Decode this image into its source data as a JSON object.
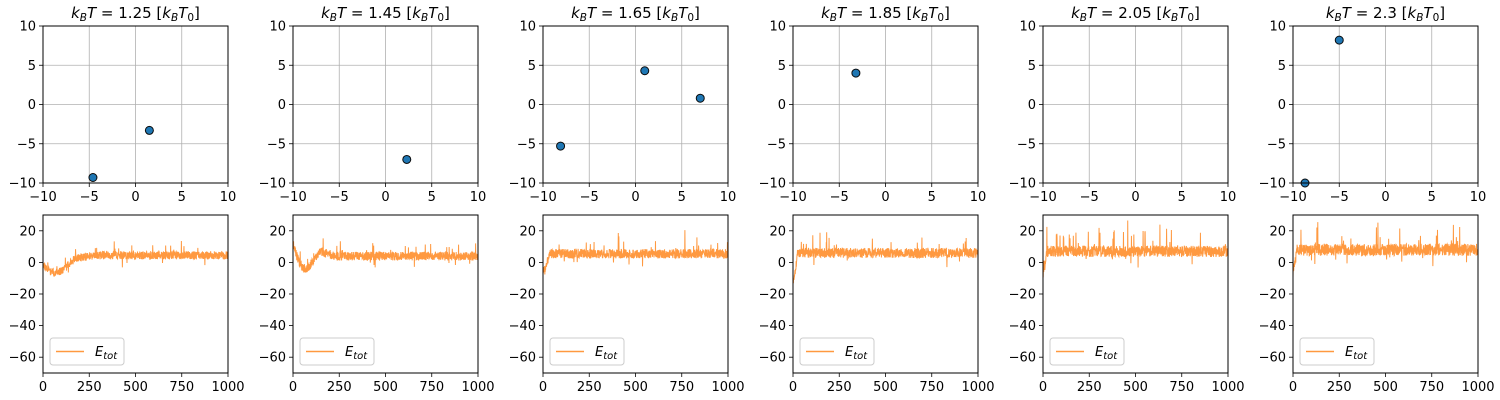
{
  "colors": {
    "point_fill": "#1f77b4",
    "point_edge": "#0a0a0a",
    "energy_line": "#ff9940",
    "grid": "#b0b0b0"
  },
  "chart_data": [
    {
      "panel": "scatter",
      "type": "scatter",
      "title": "k_B T = 1.25 [k_B T_0]",
      "title_parts": {
        "lead": "k",
        "lead_sub": "B",
        "mid": "T = 1.25 [",
        "mid_k": "k",
        "mid_sub": "B",
        "tail_T": "T",
        "tail_sub": "0",
        "close": "]"
      },
      "xlim": [
        -10,
        10
      ],
      "ylim": [
        -10,
        10
      ],
      "grid": true,
      "xticks": [
        "−10",
        "−5",
        "0",
        "5",
        "10"
      ],
      "yticks": [
        "10",
        "5",
        "0",
        "−5",
        "−10"
      ],
      "points": [
        {
          "x": -4.6,
          "y": -9.3
        },
        {
          "x": 1.5,
          "y": -3.3
        }
      ]
    },
    {
      "panel": "scatter",
      "type": "scatter",
      "title": "k_B T = 1.45 [k_B T_0]",
      "title_parts": {
        "lead": "k",
        "lead_sub": "B",
        "mid": "T = 1.45 [",
        "mid_k": "k",
        "mid_sub": "B",
        "tail_T": "T",
        "tail_sub": "0",
        "close": "]"
      },
      "xlim": [
        -10,
        10
      ],
      "ylim": [
        -10,
        10
      ],
      "grid": true,
      "xticks": [
        "−10",
        "−5",
        "0",
        "5",
        "10"
      ],
      "yticks": [
        "10",
        "5",
        "0",
        "−5",
        "−10"
      ],
      "points": [
        {
          "x": 2.3,
          "y": -7.0
        }
      ]
    },
    {
      "panel": "scatter",
      "type": "scatter",
      "title": "k_B T = 1.65 [k_B T_0]",
      "title_parts": {
        "lead": "k",
        "lead_sub": "B",
        "mid": "T = 1.65 [",
        "mid_k": "k",
        "mid_sub": "B",
        "tail_T": "T",
        "tail_sub": "0",
        "close": "]"
      },
      "xlim": [
        -10,
        10
      ],
      "ylim": [
        -10,
        10
      ],
      "grid": true,
      "xticks": [
        "−10",
        "−5",
        "0",
        "5",
        "10"
      ],
      "yticks": [
        "10",
        "5",
        "0",
        "−5",
        "−10"
      ],
      "points": [
        {
          "x": -8.1,
          "y": -5.3
        },
        {
          "x": 1.0,
          "y": 4.3
        },
        {
          "x": 7.0,
          "y": 0.8
        }
      ]
    },
    {
      "panel": "scatter",
      "type": "scatter",
      "title": "k_B T = 1.85 [k_B T_0]",
      "title_parts": {
        "lead": "k",
        "lead_sub": "B",
        "mid": "T = 1.85 [",
        "mid_k": "k",
        "mid_sub": "B",
        "tail_T": "T",
        "tail_sub": "0",
        "close": "]"
      },
      "xlim": [
        -10,
        10
      ],
      "ylim": [
        -10,
        10
      ],
      "grid": true,
      "xticks": [
        "−10",
        "−5",
        "0",
        "5",
        "10"
      ],
      "yticks": [
        "10",
        "5",
        "0",
        "−5",
        "−10"
      ],
      "points": [
        {
          "x": -3.2,
          "y": 4.0
        }
      ]
    },
    {
      "panel": "scatter",
      "type": "scatter",
      "title": "k_B T = 2.05 [k_B T_0]",
      "title_parts": {
        "lead": "k",
        "lead_sub": "B",
        "mid": "T = 2.05 [",
        "mid_k": "k",
        "mid_sub": "B",
        "tail_T": "T",
        "tail_sub": "0",
        "close": "]"
      },
      "xlim": [
        -10,
        10
      ],
      "ylim": [
        -10,
        10
      ],
      "grid": true,
      "xticks": [
        "−10",
        "−5",
        "0",
        "5",
        "10"
      ],
      "yticks": [
        "10",
        "5",
        "0",
        "−5",
        "−10"
      ],
      "points": []
    },
    {
      "panel": "scatter",
      "type": "scatter",
      "title": "k_B T = 2.3 [k_B T_0]",
      "title_parts": {
        "lead": "k",
        "lead_sub": "B",
        "mid": "T = 2.3 [",
        "mid_k": "k",
        "mid_sub": "B",
        "tail_T": "T",
        "tail_sub": "0",
        "close": "]"
      },
      "xlim": [
        -10,
        10
      ],
      "ylim": [
        -10,
        10
      ],
      "grid": true,
      "xticks": [
        "−10",
        "−5",
        "0",
        "5",
        "10"
      ],
      "yticks": [
        "10",
        "5",
        "0",
        "−5",
        "−10"
      ],
      "points": [
        {
          "x": -5.0,
          "y": 8.2
        },
        {
          "x": -8.7,
          "y": -10.0
        }
      ]
    },
    {
      "panel": "energy",
      "type": "line",
      "legend": "E_tot",
      "legend_main": "E",
      "legend_sub": "tot",
      "legend_position": "lower-left",
      "xlim": [
        0,
        1000
      ],
      "ylim": [
        -70,
        30
      ],
      "xticks": [
        "0",
        "250",
        "500",
        "750",
        "1000"
      ],
      "yticks": [
        "20",
        "0",
        "−20",
        "−40",
        "−60"
      ],
      "series": [
        {
          "name": "E_tot",
          "baseline": 4.5,
          "noise": 2.6,
          "spike": 7.0,
          "start": -1.0,
          "dip": -13.0,
          "settle": 280,
          "seed": 11
        }
      ]
    },
    {
      "panel": "energy",
      "type": "line",
      "legend": "E_tot",
      "legend_main": "E",
      "legend_sub": "tot",
      "legend_position": "lower-left",
      "xlim": [
        0,
        1000
      ],
      "ylim": [
        -70,
        30
      ],
      "xticks": [
        "0",
        "250",
        "500",
        "750",
        "1000"
      ],
      "yticks": [
        "20",
        "0",
        "−20",
        "−40",
        "−60"
      ],
      "series": [
        {
          "name": "E_tot",
          "baseline": 4.0,
          "noise": 2.8,
          "spike": 8.0,
          "start": 12.0,
          "dip": -12.0,
          "settle": 230,
          "seed": 23
        }
      ]
    },
    {
      "panel": "energy",
      "type": "line",
      "legend": "E_tot",
      "legend_main": "E",
      "legend_sub": "tot",
      "legend_position": "lower-left",
      "xlim": [
        0,
        1000
      ],
      "ylim": [
        -70,
        30
      ],
      "xticks": [
        "0",
        "250",
        "500",
        "750",
        "1000"
      ],
      "yticks": [
        "20",
        "0",
        "−20",
        "−40",
        "−60"
      ],
      "series": [
        {
          "name": "E_tot",
          "baseline": 5.5,
          "noise": 3.0,
          "spike": 12.0,
          "start": -4.0,
          "dip": -10.0,
          "settle": 40,
          "seed": 37
        }
      ]
    },
    {
      "panel": "energy",
      "type": "line",
      "legend": "E_tot",
      "legend_main": "E",
      "legend_sub": "tot",
      "legend_position": "lower-left",
      "xlim": [
        0,
        1000
      ],
      "ylim": [
        -70,
        30
      ],
      "xticks": [
        "0",
        "250",
        "500",
        "750",
        "1000"
      ],
      "yticks": [
        "20",
        "0",
        "−20",
        "−40",
        "−60"
      ],
      "series": [
        {
          "name": "E_tot",
          "baseline": 6.0,
          "noise": 3.2,
          "spike": 11.0,
          "start": -12.0,
          "dip": -12.0,
          "settle": 25,
          "seed": 53
        }
      ]
    },
    {
      "panel": "energy",
      "type": "line",
      "legend": "E_tot",
      "legend_main": "E",
      "legend_sub": "tot",
      "legend_position": "lower-left",
      "xlim": [
        0,
        1000
      ],
      "ylim": [
        -70,
        30
      ],
      "xticks": [
        "0",
        "250",
        "500",
        "750",
        "1000"
      ],
      "yticks": [
        "20",
        "0",
        "−20",
        "−40",
        "−60"
      ],
      "series": [
        {
          "name": "E_tot",
          "baseline": 7.0,
          "noise": 3.6,
          "spike": 18.0,
          "start": -8.0,
          "dip": -8.0,
          "settle": 20,
          "seed": 71
        }
      ]
    },
    {
      "panel": "energy",
      "type": "line",
      "legend": "E_tot",
      "legend_main": "E",
      "legend_sub": "tot",
      "legend_position": "lower-left",
      "xlim": [
        0,
        1000
      ],
      "ylim": [
        -70,
        30
      ],
      "xticks": [
        "0",
        "250",
        "500",
        "750",
        "1000"
      ],
      "yticks": [
        "20",
        "0",
        "−20",
        "−40",
        "−60"
      ],
      "series": [
        {
          "name": "E_tot",
          "baseline": 8.0,
          "noise": 3.8,
          "spike": 16.0,
          "start": -8.0,
          "dip": -8.0,
          "settle": 20,
          "seed": 89
        }
      ]
    }
  ]
}
